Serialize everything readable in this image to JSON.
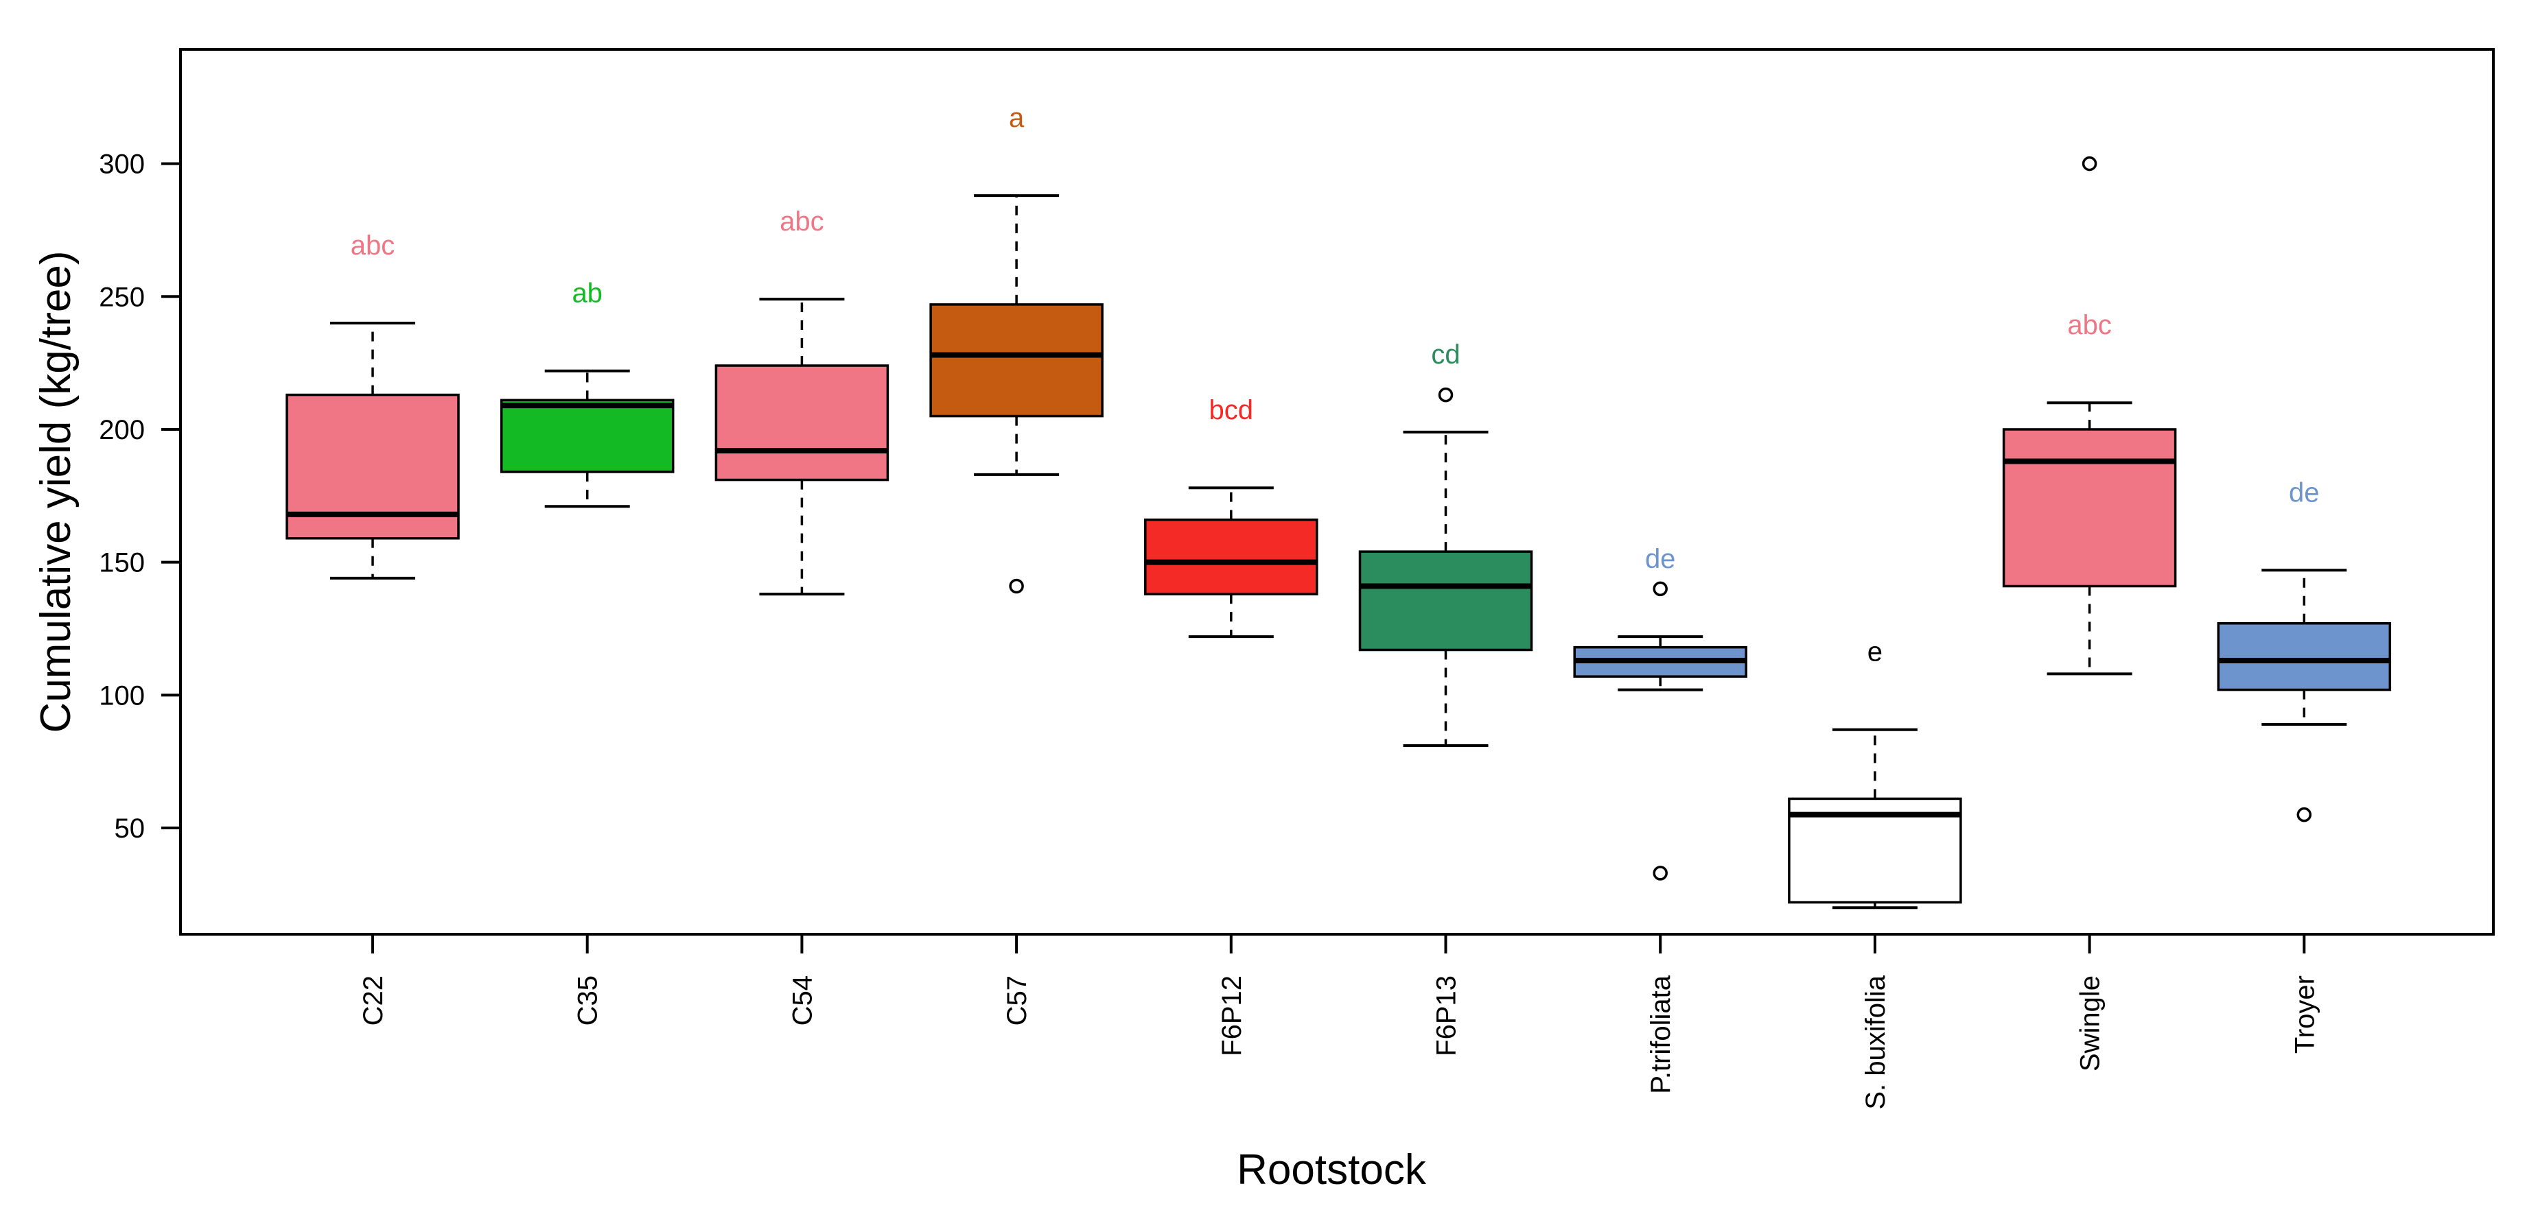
{
  "chart_data": {
    "type": "boxplot",
    "title": "",
    "xlabel": "Rootstock",
    "ylabel": "Cumulative yield (kg/tree)",
    "ylim": [
      10,
      343
    ],
    "yticks": [
      50,
      100,
      150,
      200,
      250,
      300
    ],
    "grid": false,
    "categories": [
      "C22",
      "C35",
      "C54",
      "C57",
      "F6P12",
      "F6P13",
      "P.trifoliata",
      "S. buxifolia",
      "Swingle",
      "Troyer"
    ],
    "boxes": [
      {
        "category": "C22",
        "whisker_low": 144,
        "q1": 159,
        "median": 168,
        "q3": 213,
        "whisker_high": 240,
        "outliers": [],
        "letter": "abc",
        "color": "#F07585"
      },
      {
        "category": "C35",
        "whisker_low": 171,
        "q1": 184,
        "median": 209,
        "q3": 211,
        "whisker_high": 222,
        "outliers": [],
        "letter": "ab",
        "color": "#14BA24"
      },
      {
        "category": "C54",
        "whisker_low": 138,
        "q1": 181,
        "median": 192,
        "q3": 224,
        "whisker_high": 249,
        "outliers": [],
        "letter": "abc",
        "color": "#F07585"
      },
      {
        "category": "C57",
        "whisker_low": 183,
        "q1": 205,
        "median": 228,
        "q3": 247,
        "whisker_high": 288,
        "outliers": [
          141
        ],
        "letter": "a",
        "color": "#C55A11"
      },
      {
        "category": "F6P12",
        "whisker_low": 122,
        "q1": 138,
        "median": 150,
        "q3": 166,
        "whisker_high": 178,
        "outliers": [],
        "letter": "bcd",
        "color": "#F42A26"
      },
      {
        "category": "F6P13",
        "whisker_low": 81,
        "q1": 117,
        "median": 141,
        "q3": 154,
        "whisker_high": 199,
        "outliers": [
          213
        ],
        "letter": "cd",
        "color": "#2B8C5D"
      },
      {
        "category": "P.trifoliata",
        "whisker_low": 102,
        "q1": 107,
        "median": 113,
        "q3": 118,
        "whisker_high": 122,
        "outliers": [
          140,
          33
        ],
        "letter": "de",
        "color": "#6E94CE"
      },
      {
        "category": "S. buxifolia",
        "whisker_low": 20,
        "q1": 22,
        "median": 55,
        "q3": 61,
        "whisker_high": 87,
        "outliers": [],
        "letter": "e",
        "color": "#FFFFFF"
      },
      {
        "category": "Swingle",
        "whisker_low": 108,
        "q1": 141,
        "median": 188,
        "q3": 200,
        "whisker_high": 210,
        "outliers": [
          300
        ],
        "letter": "abc",
        "color": "#F07585"
      },
      {
        "category": "Troyer",
        "whisker_low": 89,
        "q1": 102,
        "median": 113,
        "q3": 127,
        "whisker_high": 147,
        "outliers": [
          55
        ],
        "letter": "de",
        "color": "#6E94CE"
      }
    ],
    "letter_colors": {
      "S. buxifolia": "#000000"
    }
  }
}
